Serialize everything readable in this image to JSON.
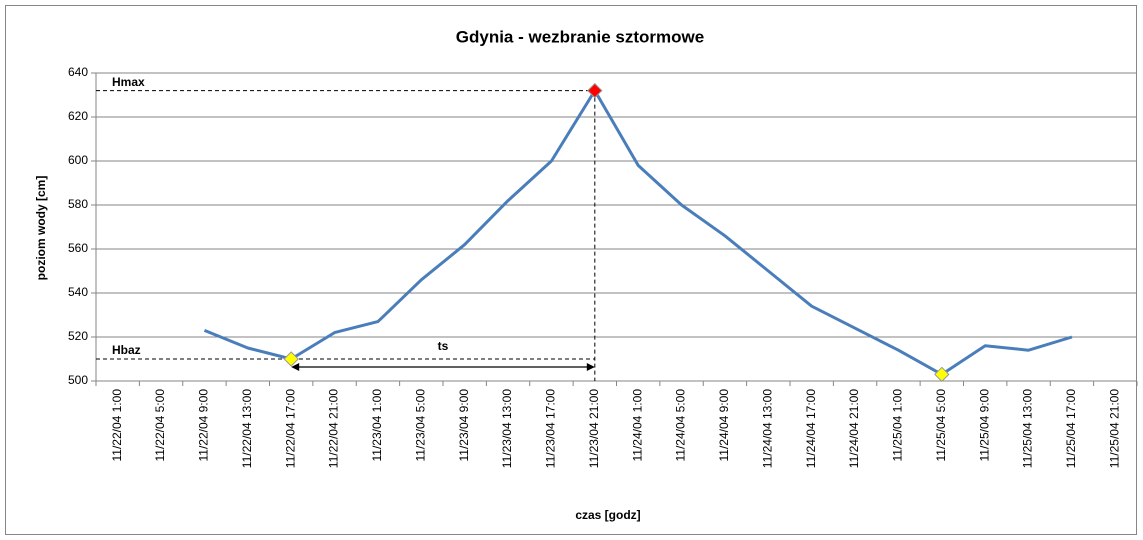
{
  "chart_data": {
    "type": "line",
    "title": "Gdynia - wezbranie sztormowe",
    "ylabel": "poziom wody [cm]",
    "xlabel": "czas [godz]",
    "categories": [
      "11/22/04 1:00",
      "11/22/04 5:00",
      "11/22/04 9:00",
      "11/22/04 13:00",
      "11/22/04 17:00",
      "11/22/04 21:00",
      "11/23/04 1:00",
      "11/23/04 5:00",
      "11/23/04 9:00",
      "11/23/04 13:00",
      "11/23/04 17:00",
      "11/23/04 21:00",
      "11/24/04 1:00",
      "11/24/04 5:00",
      "11/24/04 9:00",
      "11/24/04 13:00",
      "11/24/04 17:00",
      "11/24/04 21:00",
      "11/25/04 1:00",
      "11/25/04 5:00",
      "11/25/04 9:00",
      "11/25/04 13:00",
      "11/25/04 17:00",
      "11/25/04 21:00"
    ],
    "series": [
      {
        "name": "poziom wody",
        "color": "#4a7ebb",
        "values": [
          null,
          null,
          523,
          515,
          510,
          522,
          527,
          546,
          562,
          582,
          600,
          632,
          598,
          580,
          566,
          550,
          534,
          524,
          514,
          503,
          516,
          514,
          520,
          null
        ]
      }
    ],
    "annotations": [
      "Hmax",
      "Hbaz",
      "ts"
    ],
    "ylim": [
      500,
      640
    ],
    "yticks": [
      500,
      520,
      540,
      560,
      580,
      600,
      620,
      640
    ],
    "grid": true
  }
}
